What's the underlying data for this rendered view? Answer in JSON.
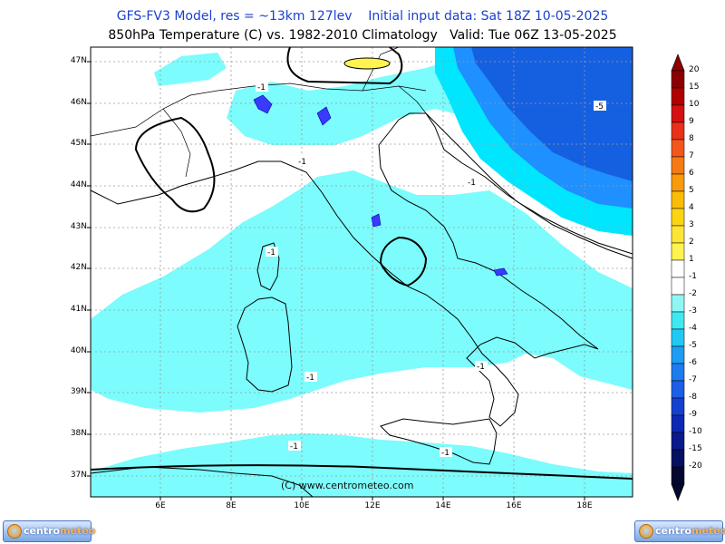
{
  "header": {
    "line1": "GFS-FV3 Model, res = ~13km 127lev    Initial input data: Sat 18Z 10-05-2025",
    "line2": "850hPa Temperature (C) vs. 1982-2010 Climatology   Valid: Tue 06Z 13-05-2025"
  },
  "map": {
    "lat_labels": [
      "47N",
      "46N",
      "45N",
      "44N",
      "43N",
      "42N",
      "41N",
      "40N",
      "39N",
      "38N",
      "37N"
    ],
    "lon_labels": [
      "6E",
      "8E",
      "10E",
      "12E",
      "14E",
      "16E",
      "18E"
    ],
    "credit": "(C) www.centrometeo.com",
    "contour_labels": [
      "-1",
      "-1",
      "-1",
      "-1",
      "-1",
      "-1",
      "-1",
      "-1",
      "-5"
    ]
  },
  "colorbar": {
    "labels": [
      "20",
      "15",
      "10",
      "9",
      "8",
      "7",
      "6",
      "5",
      "4",
      "3",
      "2",
      "1",
      "-1",
      "-2",
      "-3",
      "-4",
      "-5",
      "-6",
      "-7",
      "-8",
      "-9",
      "-10",
      "-15",
      "-20"
    ],
    "colors": [
      "#8b0000",
      "#b00000",
      "#d41010",
      "#e8301a",
      "#f2561c",
      "#f67a14",
      "#f89a0a",
      "#fabc06",
      "#fcd412",
      "#fde536",
      "#fff34f",
      "#ffffff",
      "#ffffff",
      "#8ff6f6",
      "#3ee8f0",
      "#20c8f4",
      "#1e9cf2",
      "#1e7cf0",
      "#1c5ee6",
      "#1440d0",
      "#0c28b4",
      "#0a1a8c",
      "#061060",
      "#03082e"
    ]
  },
  "logos": {
    "left": "centrometeo",
    "right": "centrometeo"
  },
  "colors": {
    "anomaly_light": "#7cfcfc",
    "anomaly_cyan": "#00e6ff",
    "anomaly_blue": "#1e90ff",
    "anomaly_deep": "#1560e0"
  }
}
